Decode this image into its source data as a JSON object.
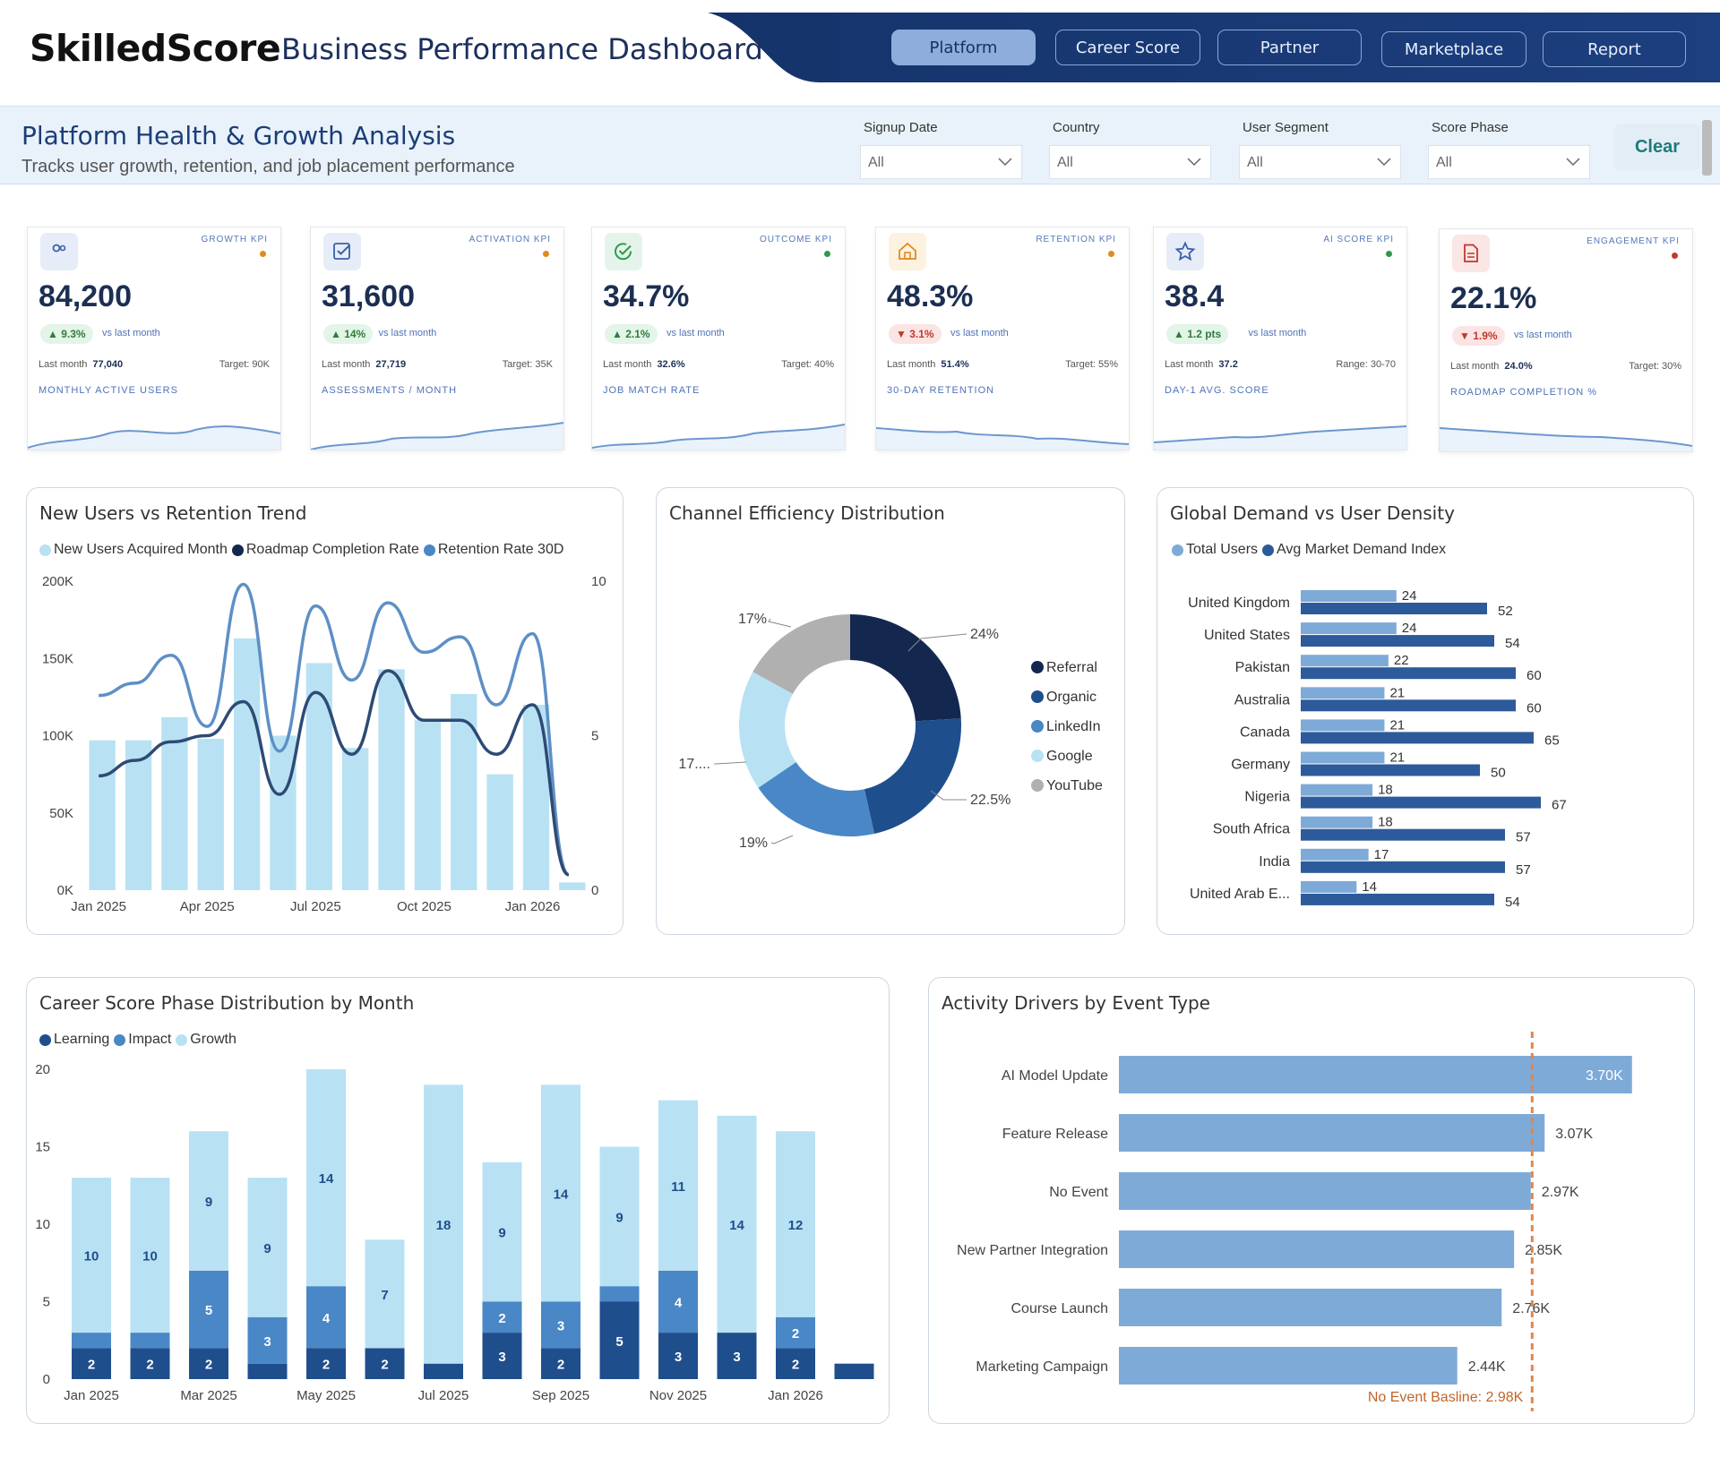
{
  "header": {
    "logo": "SkilledScore",
    "title": "Business Performance Dashboard",
    "nav": [
      "Platform",
      "Career Score",
      "Partner",
      "Marketplace",
      "Report"
    ],
    "active_nav": "Platform"
  },
  "filters": {
    "title": "Platform Health & Growth Analysis",
    "subtitle": "Tracks user growth, retention, and job placement performance",
    "items": [
      {
        "label": "Signup Date",
        "value": "All"
      },
      {
        "label": "Country",
        "value": "All"
      },
      {
        "label": "User Segment",
        "value": "All"
      },
      {
        "label": "Score Phase",
        "value": "All"
      }
    ],
    "clear": "Clear"
  },
  "kpis": [
    {
      "icon": "users-icon",
      "category": "GROWTH KPI",
      "dot": "#e08a1e",
      "value": "84,200",
      "change": "▲ 9.3%",
      "direction": "up",
      "vs": "vs last month",
      "last_label": "Last month",
      "last": "77,040",
      "target": "Target: 90K",
      "footer": "MONTHLY ACTIVE USERS",
      "icon_bg": "#e6edf8",
      "icon_color": "#3a5fa8"
    },
    {
      "icon": "checkbox-icon",
      "category": "ACTIVATION KPI",
      "dot": "#e08a1e",
      "value": "31,600",
      "change": "▲ 14%",
      "direction": "up",
      "vs": "vs last month",
      "last_label": "Last month",
      "last": "27,719",
      "target": "Target: 35K",
      "footer": "ASSESSMENTS / MONTH",
      "icon_bg": "#e6edf8",
      "icon_color": "#3a5fa8"
    },
    {
      "icon": "check-circle-icon",
      "category": "OUTCOME KPI",
      "dot": "#2e9a4a",
      "value": "34.7%",
      "change": "▲ 2.1%",
      "direction": "up",
      "vs": "vs last month",
      "last_label": "Last month",
      "last": "32.6%",
      "target": "Target: 40%",
      "footer": "JOB MATCH RATE",
      "icon_bg": "#e5f4ea",
      "icon_color": "#2e9a4a"
    },
    {
      "icon": "home-icon",
      "category": "RETENTION KPI",
      "dot": "#e08a1e",
      "value": "48.3%",
      "change": "▼ 3.1%",
      "direction": "down",
      "vs": "vs last month",
      "last_label": "Last month",
      "last": "51.4%",
      "target": "Target: 55%",
      "footer": "30-DAY RETENTION",
      "icon_bg": "#fdf1e0",
      "icon_color": "#e08a1e"
    },
    {
      "icon": "star-icon",
      "category": "AI SCORE KPI",
      "dot": "#2e9a4a",
      "value": "38.4",
      "change": "▲ 1.2 pts",
      "direction": "up",
      "vs": "vs last month",
      "last_label": "Last month",
      "last": "37.2",
      "target": "Range: 30-70",
      "footer": "DAY-1 AVG. SCORE",
      "icon_bg": "#e6edf8",
      "icon_color": "#3a5fa8"
    },
    {
      "icon": "document-icon",
      "category": "ENGAGEMENT KPI",
      "dot": "#c0392b",
      "value": "22.1%",
      "change": "▼ 1.9%",
      "direction": "down",
      "vs": "vs last month",
      "last_label": "Last month",
      "last": "24.0%",
      "target": "Target: 30%",
      "footer": "ROADMAP COMPLETION %",
      "icon_bg": "#fbe6e6",
      "icon_color": "#c0392b"
    }
  ],
  "charts": {
    "trend_title": "New Users vs Retention Trend",
    "channel_title": "Channel Efficiency Distribution",
    "geo_title": "Global Demand vs User Density",
    "phase_title": "Career Score Phase Distribution by Month",
    "activity_title": "Activity Drivers by Event Type"
  },
  "chart_data": [
    {
      "type": "bar",
      "title": "New Users vs Retention Trend",
      "series": [
        {
          "name": "New Users Acquired Month",
          "type": "bar",
          "values": [
            97000,
            97000,
            112000,
            98000,
            163000,
            100000,
            147000,
            92000,
            143000,
            110000,
            127000,
            75000,
            120000,
            5000
          ]
        },
        {
          "name": "Roadmap Completion Rate",
          "type": "line",
          "axis": "right",
          "values": [
            3.7,
            4.2,
            4.8,
            5.0,
            6.1,
            3.1,
            6.4,
            4.4,
            7.1,
            5.5,
            5.5,
            4.4,
            6.0,
            0.5
          ]
        },
        {
          "name": "Retention Rate 30D",
          "type": "line",
          "axis": "right",
          "values": [
            6.3,
            6.7,
            7.6,
            5.3,
            9.9,
            4.5,
            9.2,
            6.8,
            9.3,
            7.7,
            8.2,
            6.0,
            8.3,
            0.5
          ]
        }
      ],
      "x_ticks": [
        "Jan 2025",
        "Apr 2025",
        "Jul 2025",
        "Oct 2025",
        "Jan 2026"
      ],
      "y_ticks": [
        "0K",
        "50K",
        "100K",
        "150K",
        "200K"
      ],
      "y2_ticks": [
        "0",
        "5",
        "10"
      ],
      "ylim": [
        0,
        200000
      ],
      "y2lim": [
        0,
        10
      ]
    },
    {
      "type": "pie",
      "title": "Channel Efficiency Distribution",
      "labels": [
        "Referral",
        "Organic",
        "LinkedIn",
        "Google",
        "YouTube"
      ],
      "values": [
        24,
        22.5,
        19,
        17.5,
        17
      ],
      "slice_labels": [
        "24%",
        "22.5%",
        "19%",
        "17....",
        "17%"
      ],
      "colors": [
        "#14284f",
        "#1f4e8c",
        "#4a87c6",
        "#b8e2f3",
        "#b0b0b0"
      ]
    },
    {
      "type": "bar",
      "orientation": "horizontal",
      "title": "Global Demand vs User Density",
      "categories": [
        "United Kingdom",
        "United States",
        "Pakistan",
        "Australia",
        "Canada",
        "Germany",
        "Nigeria",
        "South Africa",
        "India",
        "United Arab E..."
      ],
      "series": [
        {
          "name": "Total Users",
          "values": [
            24,
            24,
            22,
            21,
            21,
            21,
            18,
            18,
            17,
            14
          ]
        },
        {
          "name": "Avg Market Demand Index",
          "values": [
            52,
            54,
            60,
            60,
            65,
            50,
            67,
            57,
            57,
            54
          ]
        }
      ]
    },
    {
      "type": "bar",
      "stacked": true,
      "title": "Career Score Phase Distribution by Month",
      "categories": [
        "Jan 2025",
        "Feb 2025",
        "Mar 2025",
        "Apr 2025",
        "May 2025",
        "Jun 2025",
        "Jul 2025",
        "Aug 2025",
        "Sep 2025",
        "Oct 2025",
        "Nov 2025",
        "Dec 2025",
        "Jan 2026",
        "Feb 2026"
      ],
      "x_ticks": [
        "Jan 2025",
        "Mar 2025",
        "May 2025",
        "Jul 2025",
        "Sep 2025",
        "Nov 2025",
        "Jan 2026"
      ],
      "series": [
        {
          "name": "Learning",
          "values": [
            2,
            2,
            2,
            1,
            2,
            2,
            1,
            3,
            2,
            5,
            3,
            3,
            2,
            1
          ]
        },
        {
          "name": "Impact",
          "values": [
            1,
            1,
            5,
            3,
            4,
            0,
            0,
            2,
            3,
            1,
            4,
            0,
            2,
            0
          ]
        },
        {
          "name": "Growth",
          "values": [
            10,
            10,
            9,
            9,
            14,
            7,
            18,
            9,
            14,
            9,
            11,
            14,
            12,
            0
          ]
        }
      ],
      "ylim": [
        0,
        20
      ],
      "y_ticks": [
        "0",
        "5",
        "10",
        "15",
        "20"
      ]
    },
    {
      "type": "bar",
      "orientation": "horizontal",
      "title": "Activity Drivers by Event Type",
      "categories": [
        "AI Model Update",
        "Feature Release",
        "No Event",
        "New Partner Integration",
        "Course Launch",
        "Marketing Campaign"
      ],
      "values": [
        3700,
        3070,
        2970,
        2850,
        2760,
        2440
      ],
      "value_labels": [
        "3.70K",
        "3.07K",
        "2.97K",
        "2.85K",
        "2.76K",
        "2.44K"
      ],
      "reference_line": {
        "label": "No Event Basline: 2.98K",
        "value": 2980
      }
    }
  ]
}
